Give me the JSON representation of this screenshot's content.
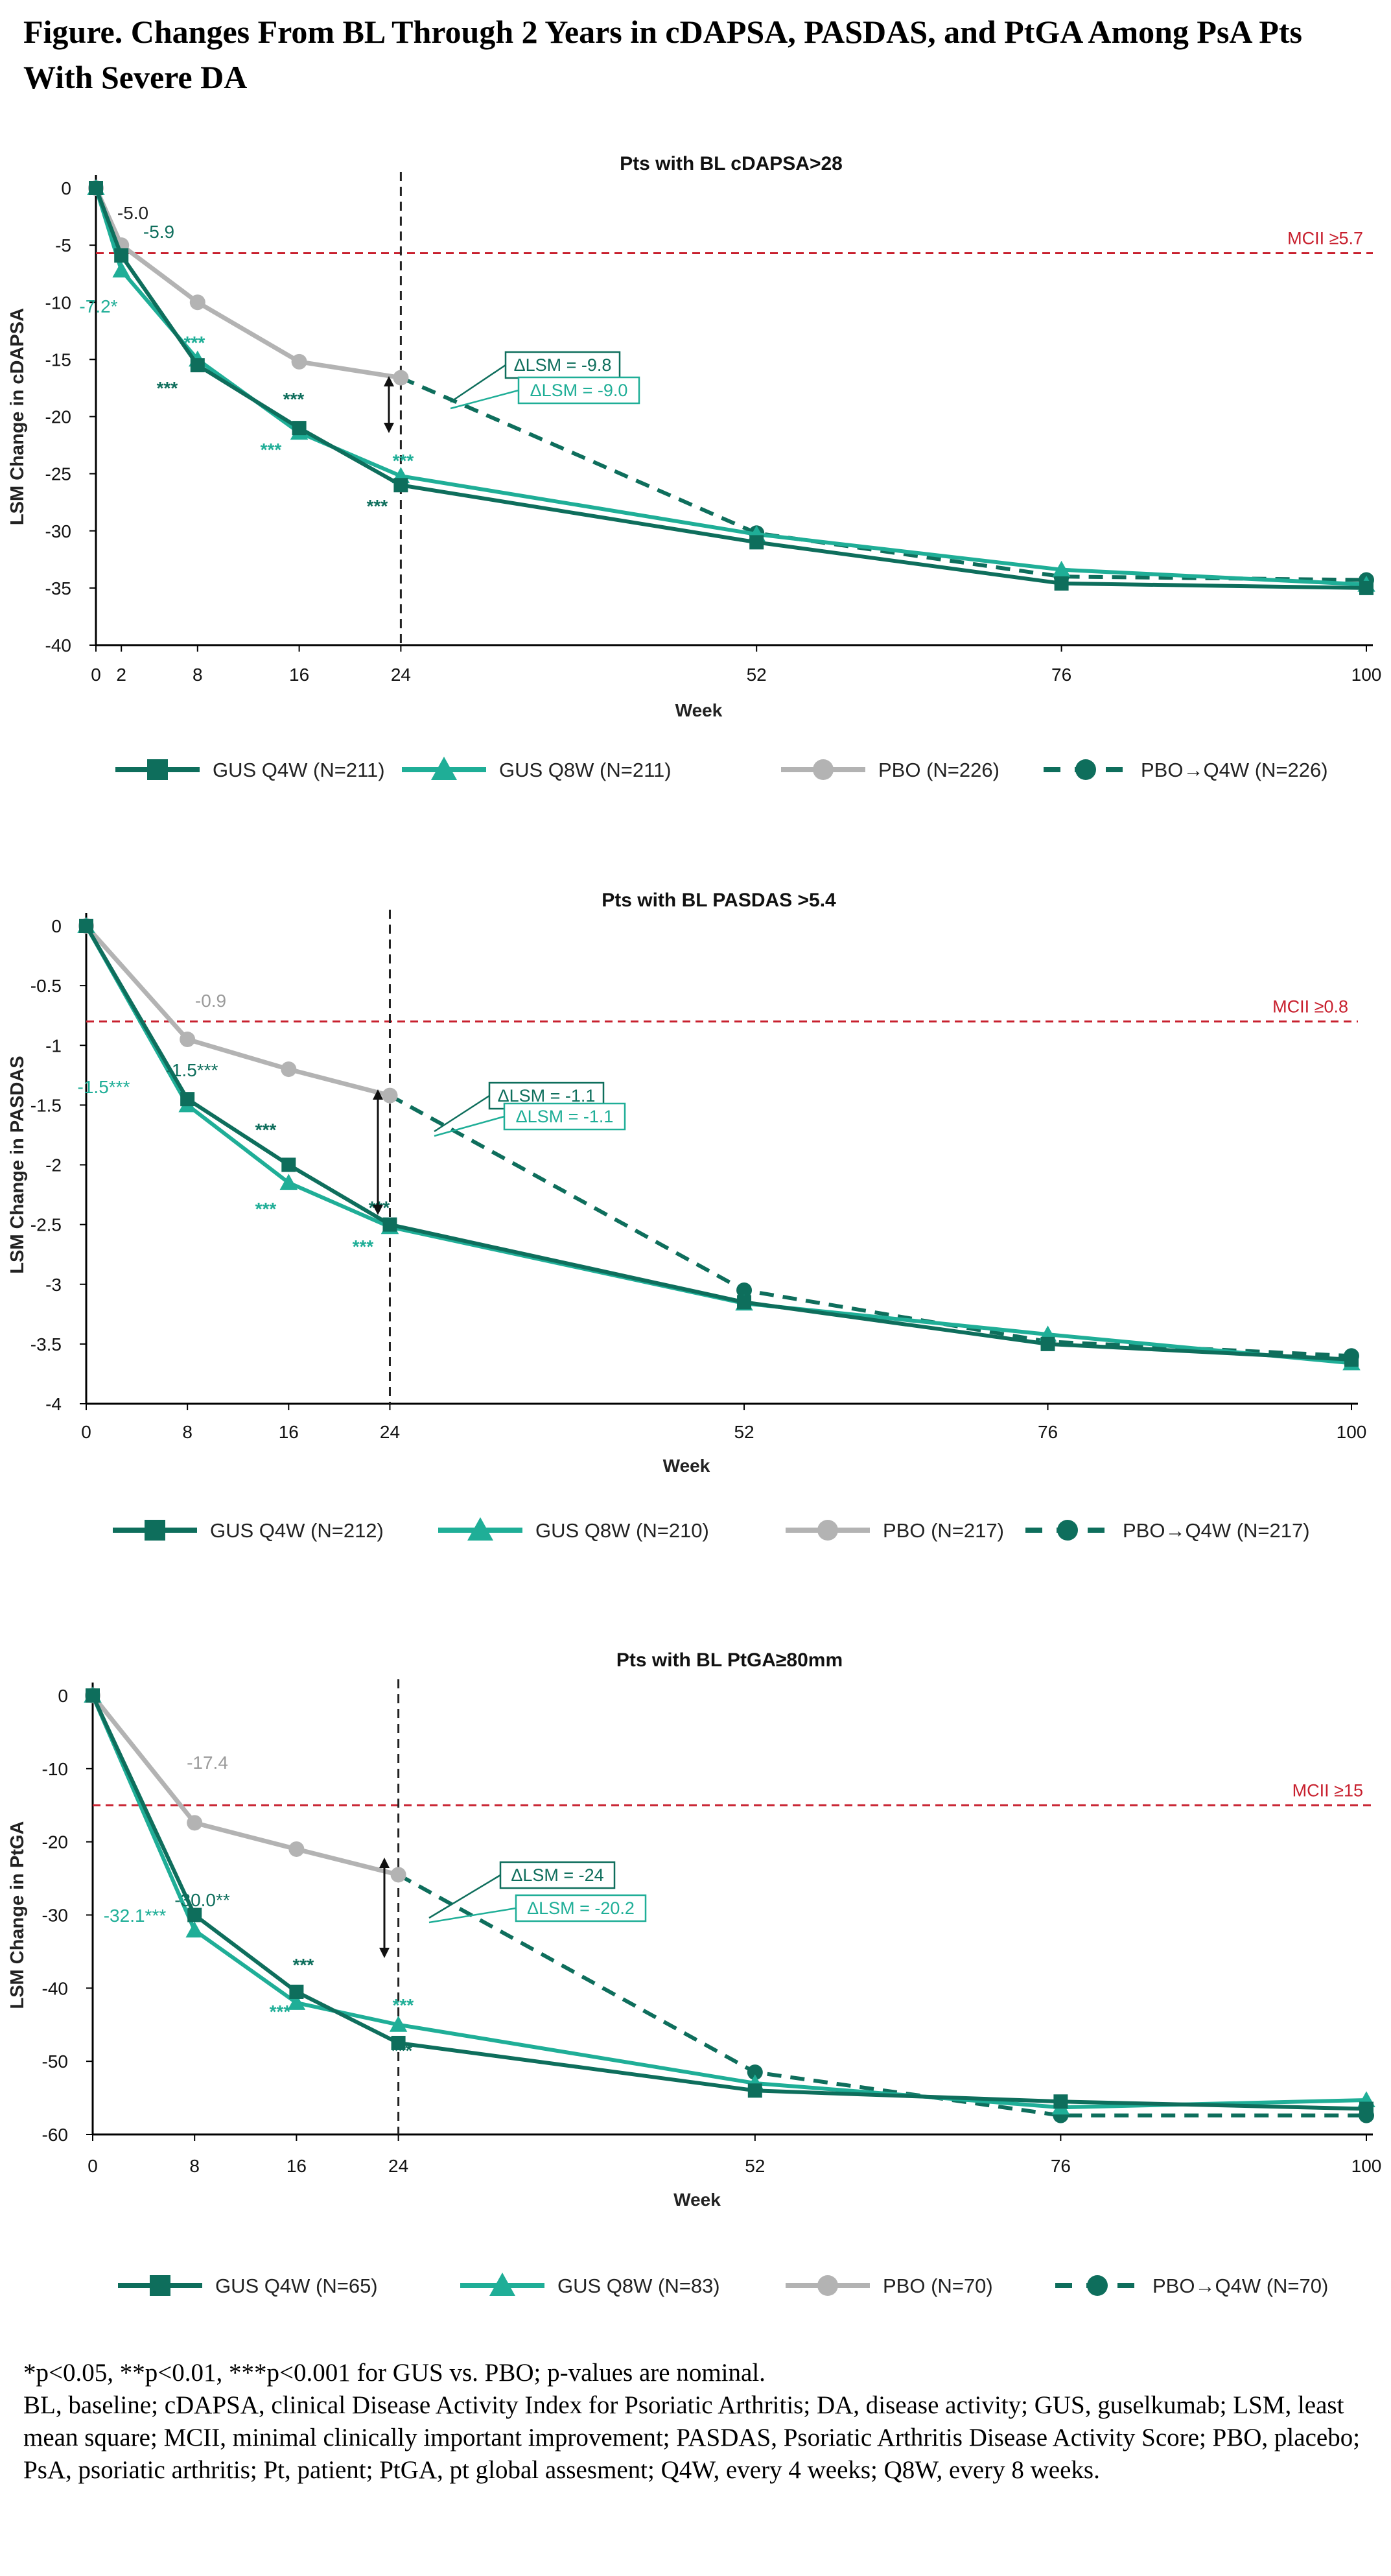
{
  "figure_title": "Figure. Changes From BL Through 2 Years in cDAPSA, PASDAS, and PtGA Among PsA Pts With Severe DA",
  "footnote_significance": "*p<0.05, **p<0.01, ***p<0.001 for GUS vs. PBO; p-values are nominal.",
  "footnote_abbreviations": "BL, baseline; cDAPSA, clinical Disease Activity Index for Psoriatic Arthritis; DA, disease activity; GUS, guselkumab; LSM, least mean square; MCII, minimal clinically important improvement; PASDAS, Psoriatic Arthritis Disease Activity Score; PBO, placebo; PsA, psoriatic arthritis; Pt, patient; PtGA, pt global assesment; Q4W, every 4 weeks; Q8W, every 8 weeks.",
  "colors": {
    "gus_q4w": "#0e6e5c",
    "gus_q8w": "#1fae97",
    "pbo": "#b3b3b3",
    "mcii": "#c8202e",
    "axis": "#000000"
  },
  "chart_data": [
    {
      "type": "line",
      "title": "Pts with BL cDAPSA>28",
      "xlabel": "Week",
      "ylabel": "LSM Change in cDAPSA",
      "xlim": [
        0,
        100
      ],
      "ylim": [
        -40,
        0
      ],
      "x_ticks": [
        0,
        2,
        8,
        16,
        24,
        52,
        76,
        100
      ],
      "y_ticks": [
        0,
        -5,
        -10,
        -15,
        -20,
        -25,
        -30,
        -35,
        -40
      ],
      "week24_line": 24,
      "mcii": {
        "value": -5.7,
        "label": "MCII ≥5.7"
      },
      "series": [
        {
          "key": "gus_q4w",
          "name": "GUS Q4W (N=211)",
          "marker": "square",
          "dashed": false,
          "x": [
            0,
            2,
            8,
            16,
            24,
            52,
            76,
            100
          ],
          "y": [
            0,
            -5.9,
            -15.5,
            -21,
            -26,
            -31,
            -34.6,
            -35
          ]
        },
        {
          "key": "gus_q8w",
          "name": "GUS Q8W (N=211)",
          "marker": "triangle",
          "dashed": false,
          "x": [
            0,
            2,
            8,
            16,
            24,
            52,
            76,
            100
          ],
          "y": [
            0,
            -7.2,
            -15,
            -21.4,
            -25.2,
            -30.3,
            -33.4,
            -34.7
          ]
        },
        {
          "key": "pbo",
          "name": "PBO (N=226)",
          "marker": "circle",
          "dashed": false,
          "x": [
            0,
            2,
            8,
            16,
            24
          ],
          "y": [
            0,
            -5,
            -10,
            -15.2,
            -16.6
          ]
        },
        {
          "key": "pbo_q4w",
          "name": "PBO→Q4W (N=226)",
          "marker": "circle",
          "dashed": true,
          "x": [
            24,
            52,
            76,
            100
          ],
          "y": [
            -16.6,
            -30.2,
            -34,
            -34.3
          ]
        }
      ],
      "point_labels": [
        {
          "text": "-5.0",
          "series": "pbo"
        },
        {
          "text": "-5.9",
          "series": "gus_q4w"
        },
        {
          "text": "-7.2*",
          "series": "gus_q8w"
        },
        {
          "text": "***",
          "series": "gus_q8w"
        },
        {
          "text": "***",
          "series": "gus_q4w"
        },
        {
          "text": "***",
          "series": "gus_q4w"
        },
        {
          "text": "***",
          "series": "gus_q8w"
        },
        {
          "text": "***",
          "series": "gus_q8w"
        },
        {
          "text": "***",
          "series": "gus_q4w"
        }
      ],
      "delta_labels": [
        {
          "text": "ΔLSM = -9.8",
          "series": "gus_q4w"
        },
        {
          "text": "ΔLSM = -9.0",
          "series": "gus_q8w"
        }
      ]
    },
    {
      "type": "line",
      "title": "Pts with BL PASDAS >5.4",
      "xlabel": "Week",
      "ylabel": "LSM Change in PASDAS",
      "xlim": [
        0,
        100
      ],
      "ylim": [
        -4,
        0
      ],
      "x_ticks": [
        0,
        8,
        16,
        24,
        52,
        76,
        100
      ],
      "y_ticks": [
        0,
        -0.5,
        -1,
        -1.5,
        -2,
        -2.5,
        -3,
        -3.5,
        -4
      ],
      "week24_line": 24,
      "mcii": {
        "value": -0.8,
        "label": "MCII ≥0.8"
      },
      "series": [
        {
          "key": "gus_q4w",
          "name": "GUS Q4W (N=212)",
          "marker": "square",
          "dashed": false,
          "x": [
            0,
            8,
            16,
            24,
            52,
            76,
            100
          ],
          "y": [
            0,
            -1.45,
            -2,
            -2.5,
            -3.15,
            -3.5,
            -3.63
          ]
        },
        {
          "key": "gus_q8w",
          "name": "GUS Q8W (N=210)",
          "marker": "triangle",
          "dashed": false,
          "x": [
            0,
            8,
            16,
            24,
            52,
            76,
            100
          ],
          "y": [
            0,
            -1.5,
            -2.15,
            -2.52,
            -3.16,
            -3.42,
            -3.66
          ]
        },
        {
          "key": "pbo",
          "name": "PBO (N=217)",
          "marker": "circle",
          "dashed": false,
          "x": [
            0,
            8,
            16,
            24
          ],
          "y": [
            0,
            -0.95,
            -1.2,
            -1.42
          ]
        },
        {
          "key": "pbo_q4w",
          "name": "PBO→Q4W (N=217)",
          "marker": "circle",
          "dashed": true,
          "x": [
            24,
            52,
            76,
            100
          ],
          "y": [
            -1.42,
            -3.05,
            -3.48,
            -3.6
          ]
        }
      ],
      "point_labels": [
        {
          "text": "-0.9",
          "series": "pbo"
        },
        {
          "text": "-1.5***",
          "series": "gus_q4w"
        },
        {
          "text": "-1.5***",
          "series": "gus_q8w"
        },
        {
          "text": "***",
          "series": "gus_q4w"
        },
        {
          "text": "***",
          "series": "gus_q8w"
        },
        {
          "text": "***",
          "series": "gus_q4w"
        },
        {
          "text": "***",
          "series": "gus_q8w"
        }
      ],
      "delta_labels": [
        {
          "text": "ΔLSM = -1.1",
          "series": "gus_q4w"
        },
        {
          "text": "ΔLSM = -1.1",
          "series": "gus_q8w"
        }
      ]
    },
    {
      "type": "line",
      "title": "Pts with BL PtGA≥80mm",
      "xlabel": "Week",
      "ylabel": "LSM Change in PtGA",
      "xlim": [
        0,
        100
      ],
      "ylim": [
        -60,
        0
      ],
      "x_ticks": [
        0,
        8,
        16,
        24,
        52,
        76,
        100
      ],
      "y_ticks": [
        0,
        -10,
        -20,
        -30,
        -40,
        -50,
        -60
      ],
      "week24_line": 24,
      "mcii": {
        "value": -15,
        "label": "MCII ≥15"
      },
      "series": [
        {
          "key": "gus_q4w",
          "name": "GUS Q4W (N=65)",
          "marker": "square",
          "dashed": false,
          "x": [
            0,
            8,
            16,
            24,
            52,
            76,
            100
          ],
          "y": [
            0,
            -30,
            -40.5,
            -47.5,
            -54,
            -55.5,
            -56.5
          ]
        },
        {
          "key": "gus_q8w",
          "name": "GUS Q8W (N=83)",
          "marker": "triangle",
          "dashed": false,
          "x": [
            0,
            8,
            16,
            24,
            52,
            76,
            100
          ],
          "y": [
            0,
            -32.1,
            -42,
            -45,
            -53,
            -56.3,
            -55.3
          ]
        },
        {
          "key": "pbo",
          "name": "PBO (N=70)",
          "marker": "circle",
          "dashed": false,
          "x": [
            0,
            8,
            16,
            24
          ],
          "y": [
            0,
            -17.4,
            -21,
            -24.5
          ]
        },
        {
          "key": "pbo_q4w",
          "name": "PBO→Q4W (N=70)",
          "marker": "circle",
          "dashed": true,
          "x": [
            24,
            52,
            76,
            100
          ],
          "y": [
            -24.5,
            -51.5,
            -57.4,
            -57.4
          ]
        }
      ],
      "point_labels": [
        {
          "text": "-17.4",
          "series": "pbo"
        },
        {
          "text": "-30.0**",
          "series": "gus_q4w"
        },
        {
          "text": "-32.1***",
          "series": "gus_q8w"
        },
        {
          "text": "***",
          "series": "gus_q4w"
        },
        {
          "text": "***",
          "series": "gus_q8w"
        },
        {
          "text": "***",
          "series": "gus_q8w"
        },
        {
          "text": "***",
          "series": "gus_q4w"
        }
      ],
      "delta_labels": [
        {
          "text": "ΔLSM = -24",
          "series": "gus_q4w"
        },
        {
          "text": "ΔLSM = -20.2",
          "series": "gus_q8w"
        }
      ]
    }
  ]
}
